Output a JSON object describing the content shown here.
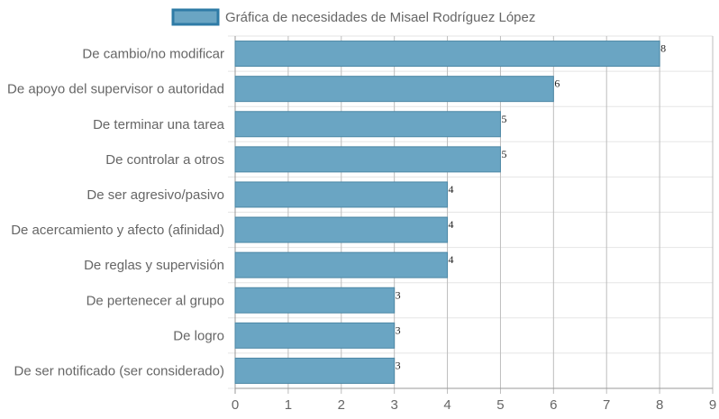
{
  "chart_data": {
    "type": "bar",
    "orientation": "horizontal",
    "categories": [
      "De cambio/no modificar",
      "De apoyo del supervisor o autoridad",
      "De terminar una tarea",
      "De controlar a otros",
      "De ser agresivo/pasivo",
      "De acercamiento y afecto (afinidad)",
      "De reglas y supervisión",
      "De pertenecer al grupo",
      "De logro",
      "De ser notificado (ser considerado)"
    ],
    "series": [
      {
        "name": "Gráfica de necesidades de Misael Rodríguez López",
        "values": [
          8,
          6,
          5,
          5,
          4,
          4,
          4,
          3,
          3,
          3
        ]
      }
    ],
    "xlim": [
      0,
      9
    ],
    "xticks": [
      "0",
      "1",
      "2",
      "3",
      "4",
      "5",
      "6",
      "7",
      "8",
      "9"
    ],
    "grid": true,
    "legend_position": "top",
    "colors": {
      "bar_fill": "#6aa5c3",
      "bar_stroke": "#4d88a6",
      "legend_fill": "#6aa5c3",
      "legend_stroke": "#2e7ba6"
    }
  }
}
